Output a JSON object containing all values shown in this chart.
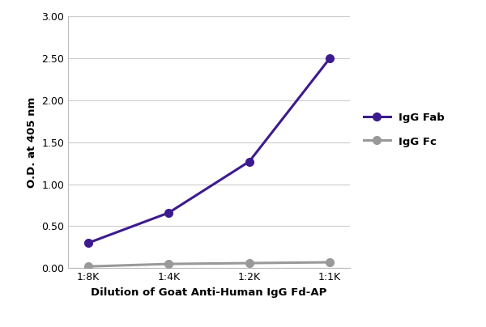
{
  "x_labels": [
    "1:8K",
    "1:4K",
    "1:2K",
    "1:1K"
  ],
  "x_values": [
    0,
    1,
    2,
    3
  ],
  "igg_fab_values": [
    0.3,
    0.66,
    1.27,
    2.5
  ],
  "igg_fc_values": [
    0.02,
    0.05,
    0.06,
    0.07
  ],
  "igg_fab_color": "#3d1a8e",
  "igg_fc_color": "#999999",
  "igg_fab_label": "IgG Fab",
  "igg_fc_label": "IgG Fc",
  "xlabel": "Dilution of Goat Anti-Human IgG Fd-AP",
  "ylabel": "O.D. at 405 nm",
  "ylim": [
    0.0,
    3.0
  ],
  "yticks": [
    0.0,
    0.5,
    1.0,
    1.5,
    2.0,
    2.5,
    3.0
  ],
  "background_color": "#ffffff",
  "grid_color": "#cccccc",
  "linewidth": 2.2,
  "markersize": 7,
  "marker": "o"
}
